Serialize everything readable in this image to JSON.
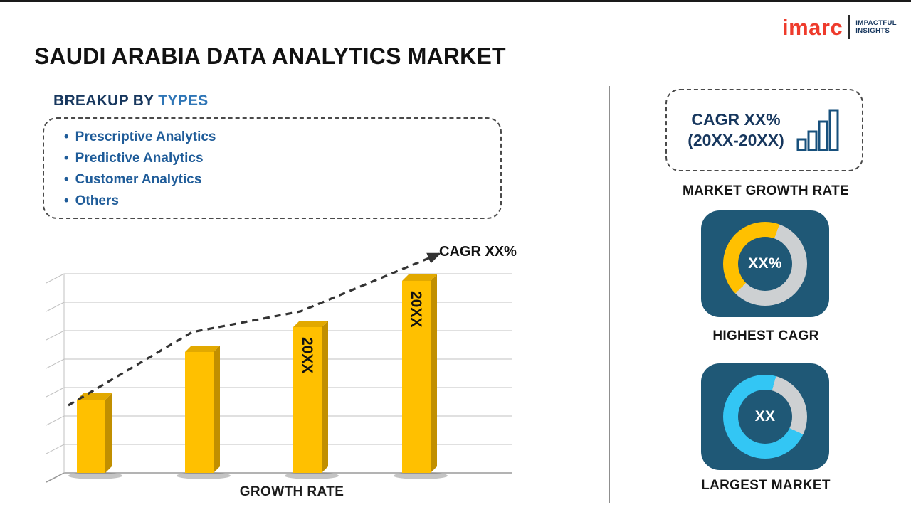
{
  "logo": {
    "brand": "imarc",
    "tagline1": "IMPACTFUL",
    "tagline2": "INSIGHTS"
  },
  "title": "SAUDI ARABIA DATA ANALYTICS MARKET",
  "breakup": {
    "heading_prefix": "BREAKUP BY ",
    "heading_highlight": "TYPES",
    "items": [
      "Prescriptive Analytics",
      "Predictive Analytics",
      "Customer Analytics",
      "Others"
    ]
  },
  "chart_data": {
    "type": "bar",
    "categories": [
      "",
      "",
      "20XX",
      "20XX"
    ],
    "values": [
      38,
      63,
      76,
      100
    ],
    "title": "",
    "xlabel": "GROWTH RATE",
    "ylabel": "",
    "ylim": [
      0,
      100
    ],
    "grid": "horizontal-3d",
    "annotation": "CAGR XX%",
    "trend_line": "dashed-arrow-ascending",
    "bar_color": "#FFC000",
    "bar_side_color": "#C18F00",
    "bar_top_color": "#E2A900",
    "bar_label_color": "#111111"
  },
  "sidebar": {
    "cagr_box": {
      "line1": "CAGR XX%",
      "line2": "(20XX-20XX)"
    },
    "market_growth_label": "MARKET GROWTH RATE",
    "highest_cagr": {
      "value": "XX%",
      "label": "HIGHEST CAGR"
    },
    "largest_market": {
      "value": "XX",
      "label": "LARGEST MARKET"
    }
  },
  "colors": {
    "brand_red": "#EE3B2C",
    "navy_text": "#17375E",
    "blue_accent": "#2E75B6",
    "list_blue": "#1F5C99",
    "card_bg": "#1F5876",
    "gold": "#FFC000",
    "cyan": "#33C6F4",
    "silver": "#CDD0D2"
  }
}
